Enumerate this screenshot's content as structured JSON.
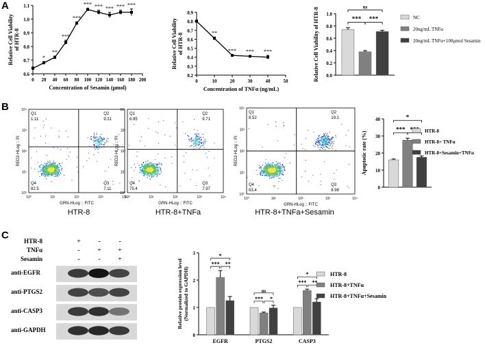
{
  "panels": {
    "a": "A",
    "b": "B",
    "c": "C"
  },
  "colors": {
    "nc": "#d9d9d9",
    "mid": "#808080",
    "dark": "#404040",
    "black": "#000000"
  },
  "chart_data": [
    {
      "type": "line",
      "panel": "A",
      "xlabel": "Concentration of Sesamin (μmol)",
      "ylabel": "Relative Cell Viability of HTR-8",
      "xlim": [
        0,
        200
      ],
      "ylim": [
        0.6,
        1.1
      ],
      "xticks": [
        0,
        20,
        40,
        60,
        80,
        100,
        120,
        140,
        160,
        180,
        200
      ],
      "yticks": [
        0.6,
        0.7,
        0.8,
        0.9,
        1.0,
        1.1
      ],
      "x": [
        0,
        20,
        40,
        60,
        80,
        100,
        120,
        140,
        160,
        180
      ],
      "y": [
        0.64,
        0.68,
        0.72,
        0.83,
        0.97,
        1.07,
        1.05,
        1.03,
        1.05,
        1.05
      ],
      "err": [
        0.01,
        0.01,
        0.01,
        0.015,
        0.01,
        0.01,
        0.015,
        0.02,
        0.015,
        0.025
      ],
      "sig": [
        "",
        "*",
        "**",
        "***",
        "***",
        "***",
        "***",
        "***",
        "***",
        "***"
      ]
    },
    {
      "type": "line",
      "panel": "A",
      "xlabel": "Concentration of TNFα (ng/mL)",
      "ylabel": "Relative Cell Viability of HTR-8",
      "xlim": [
        0,
        50
      ],
      "ylim": [
        0.2,
        0.9
      ],
      "xticks": [
        0,
        10,
        20,
        30,
        40,
        50
      ],
      "yticks": [
        0.2,
        0.3,
        0.4,
        0.5,
        0.6,
        0.7,
        0.8,
        0.9
      ],
      "x": [
        0,
        10,
        20,
        30,
        40
      ],
      "y": [
        0.8,
        0.61,
        0.42,
        0.41,
        0.4
      ],
      "err": [
        0.015,
        0.015,
        0.01,
        0.01,
        0.02
      ],
      "sig": [
        "",
        "**",
        "***",
        "***",
        "***"
      ]
    },
    {
      "type": "bar",
      "panel": "A",
      "ylabel": "Relative Cell Viability of HTR-8",
      "ylim": [
        0,
        1.0
      ],
      "yticks": [
        0,
        0.2,
        0.4,
        0.6,
        0.8,
        1.0
      ],
      "categories": [
        "NC",
        "20ng/mL TNFα",
        "20ng/mL TNFα+100μmol Sesamin"
      ],
      "values": [
        0.74,
        0.38,
        0.71
      ],
      "err": [
        0.03,
        0.02,
        0.02
      ],
      "brackets": [
        {
          "from": 0,
          "to": 1,
          "label": "***"
        },
        {
          "from": 1,
          "to": 2,
          "label": "***"
        },
        {
          "from": 0,
          "to": 2,
          "label": "ns"
        }
      ]
    },
    {
      "type": "bar",
      "panel": "B",
      "ylabel": "Apoptotic rate (%)",
      "ylim": [
        0,
        40
      ],
      "yticks": [
        0,
        10,
        20,
        30,
        40
      ],
      "categories": [
        "HTR-8",
        "HTR-8+ TNFα",
        "HTR-8+Sesamin+TNFα"
      ],
      "values": [
        16,
        27.5,
        17.5
      ],
      "err": [
        0.5,
        1.2,
        0.8
      ],
      "brackets": [
        {
          "from": 0,
          "to": 1,
          "label": "***"
        },
        {
          "from": 1,
          "to": 2,
          "label": "***"
        },
        {
          "from": 0,
          "to": 2,
          "label": "*"
        }
      ]
    },
    {
      "type": "bar",
      "panel": "C",
      "ylabel": "Relative protein expression level",
      "ylabel2": "(Normalized to GAPDH)",
      "ylim": [
        0,
        3
      ],
      "yticks": [
        0,
        1,
        2,
        3
      ],
      "categories": [
        "EGFR",
        "PTGS2",
        "CASP3"
      ],
      "series": [
        {
          "name": "HTR-8",
          "values": [
            1,
            1,
            1
          ],
          "err": [
            0,
            0,
            0
          ]
        },
        {
          "name": "HTR-8+TNFα",
          "values": [
            2.1,
            0.8,
            1.62
          ],
          "err": [
            0.25,
            0.03,
            0.05
          ]
        },
        {
          "name": "HTR-8+TNFα+Sesamin",
          "values": [
            1.25,
            0.98,
            1.2
          ],
          "err": [
            0.15,
            0.1,
            0.12
          ]
        }
      ],
      "brackets": [
        {
          "group": 0,
          "labels": [
            "***",
            "**",
            "*"
          ]
        },
        {
          "group": 1,
          "labels": [
            "***",
            "*",
            "ns"
          ]
        },
        {
          "group": 2,
          "labels": [
            "***",
            "**",
            "*"
          ]
        }
      ]
    }
  ],
  "flow": {
    "xlabel": "GRN-HLog :: FITC",
    "ylabel": "RED2-HLog :: PI",
    "ticks": [
      "10⁰",
      "10¹",
      "10²",
      "10³",
      "10⁴"
    ],
    "plots": [
      {
        "caption": "HTR-8",
        "q1": "1.11",
        "q2": "9.31",
        "q3": "7.11",
        "q4": "82.5"
      },
      {
        "caption": "HTR-8+TNFa",
        "q1": "6.95",
        "q2": "9.71",
        "q3": "7.97",
        "q4": "75.4"
      },
      {
        "caption": "HTR-8+TNFa+Sesamin",
        "q1": "8.52",
        "q2": "19.1",
        "q3": "8.98",
        "q4": "63.4"
      }
    ],
    "quad_labels": {
      "q1": "Q1",
      "q2": "Q2",
      "q3": "Q3",
      "q4": "Q4"
    }
  },
  "blot": {
    "rows": [
      "HTR-8",
      "TNFα",
      "Sesamin"
    ],
    "signs": [
      [
        "+",
        "-",
        "-"
      ],
      [
        "-",
        "+",
        "+"
      ],
      [
        "-",
        "-",
        "+"
      ]
    ],
    "bands": [
      "anti-EGFR",
      "anti-PTGS2",
      "anti-CASP3",
      "anti-GAPDH"
    ],
    "intensity": [
      [
        0.75,
        0.95,
        0.7
      ],
      [
        0.7,
        0.65,
        0.7
      ],
      [
        0.75,
        0.8,
        0.45
      ],
      [
        0.8,
        0.85,
        0.75
      ]
    ]
  }
}
